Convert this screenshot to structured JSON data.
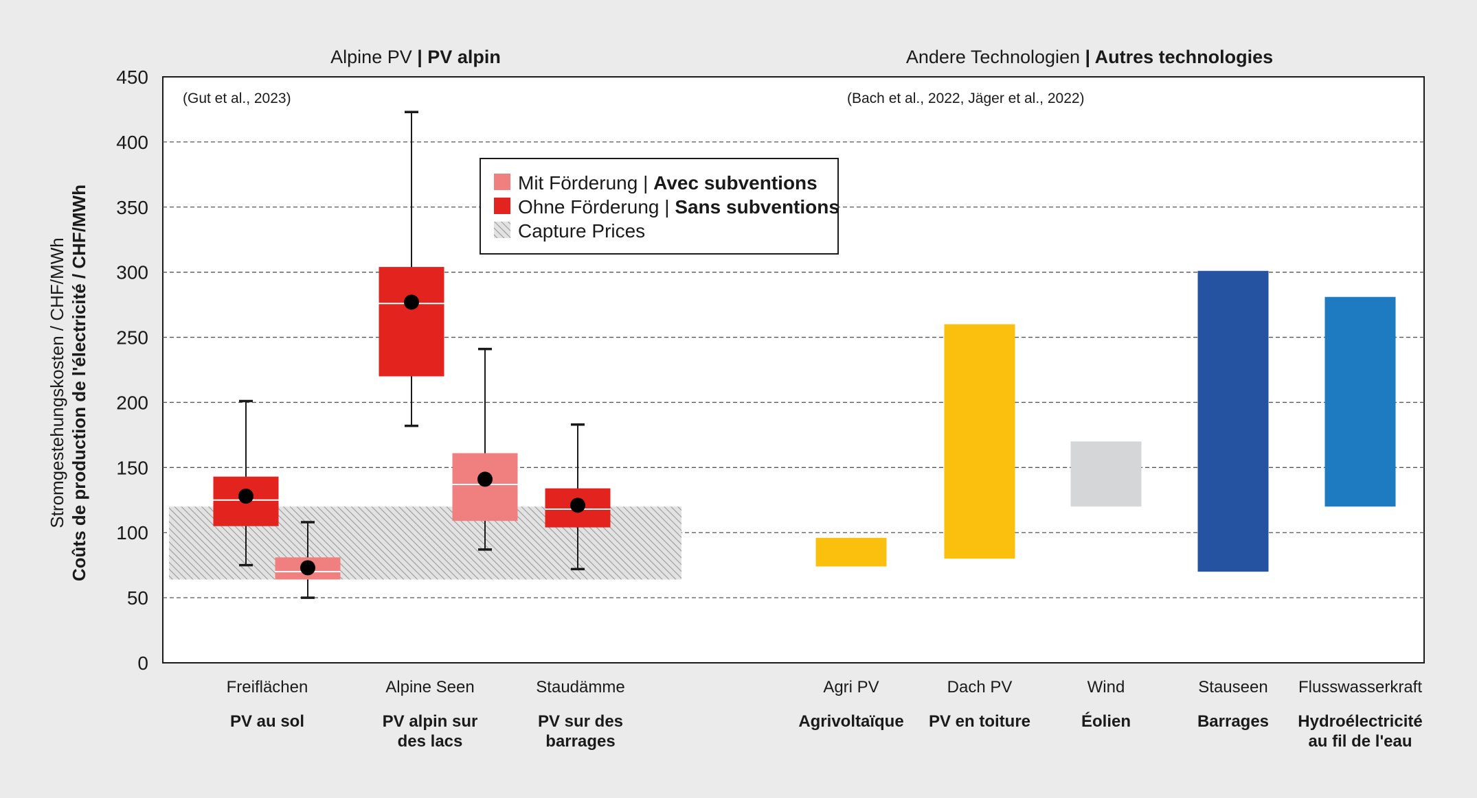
{
  "chart_data": {
    "type": "boxplot+range-bar",
    "ylim": [
      0,
      450
    ],
    "yticks": [
      "0",
      "50",
      "100",
      "150",
      "200",
      "250",
      "300",
      "350",
      "400",
      "450"
    ],
    "ylabel_line1": "Stromgestehungskosten / CHF/MWh",
    "ylabel_line2": "Coûts de production de l'électricité / CHF/MWh",
    "groups": [
      {
        "title_de": "Alpine PV",
        "sep": " | ",
        "title_fr": "PV alpin",
        "source": "(Gut et al., 2023)"
      },
      {
        "title_de": "Andere Technologien",
        "sep": " | ",
        "title_fr": "Autres technologies",
        "source": "(Bach et al., 2022, Jäger et al., 2022)"
      }
    ],
    "legend": {
      "items": [
        {
          "de": "Mit Förderung",
          "sep": " | ",
          "fr": "Avec subventions",
          "color": "#f08080"
        },
        {
          "de": "Ohne Förderung",
          "sep": " | ",
          "fr": "Sans subventions",
          "color": "#e3241e"
        },
        {
          "de": "Capture Prices",
          "sep": "",
          "fr": "",
          "color": "#c8c8c8"
        }
      ]
    },
    "capture_prices": {
      "low": 64,
      "high": 120,
      "color": "#c8c8c8"
    },
    "pv_categories": [
      {
        "label_de": "Freiflächen",
        "label_fr": [
          "PV au sol"
        ]
      },
      {
        "label_de": "Alpine Seen",
        "label_fr": [
          "PV alpin sur",
          "des lacs"
        ]
      },
      {
        "label_de": "Staudämme",
        "label_fr": [
          "PV sur des",
          "barrages"
        ]
      }
    ],
    "boxes": [
      {
        "category": "Freiflächen",
        "series": "Ohne Förderung",
        "whisker_low": 75,
        "q1": 105,
        "median": 125,
        "q3": 143,
        "whisker_high": 201,
        "mean": 128,
        "color": "#e3241e"
      },
      {
        "category": "Freiflächen",
        "series": "Mit Förderung",
        "whisker_low": 50,
        "q1": 64,
        "median": 70,
        "q3": 81,
        "whisker_high": 108,
        "mean": 73,
        "color": "#f08080"
      },
      {
        "category": "Alpine Seen",
        "series": "Ohne Förderung",
        "whisker_low": 182,
        "q1": 220,
        "median": 276,
        "q3": 304,
        "whisker_high": 423,
        "mean": 277,
        "color": "#e3241e"
      },
      {
        "category": "Alpine Seen",
        "series": "Mit Förderung",
        "whisker_low": 87,
        "q1": 109,
        "median": 137,
        "q3": 161,
        "whisker_high": 241,
        "mean": 141,
        "color": "#f08080"
      },
      {
        "category": "Staudämme",
        "series": "Ohne Förderung",
        "whisker_low": 72,
        "q1": 104,
        "median": 118,
        "q3": 134,
        "whisker_high": 183,
        "mean": 121,
        "color": "#e3241e"
      }
    ],
    "technologies": [
      {
        "label_de": "Agri PV",
        "label_fr": [
          "Agrivoltaïque"
        ],
        "low": 74,
        "high": 96,
        "color": "#fbbf0e"
      },
      {
        "label_de": "Dach PV",
        "label_fr": [
          "PV en toiture"
        ],
        "low": 80,
        "high": 260,
        "color": "#fbbf0e"
      },
      {
        "label_de": "Wind",
        "label_fr": [
          "Éolien"
        ],
        "low": 120,
        "high": 170,
        "color": "#d5d6d8"
      },
      {
        "label_de": "Stauseen",
        "label_fr": [
          "Barrages"
        ],
        "low": 70,
        "high": 301,
        "color": "#2553a2"
      },
      {
        "label_de": "Flusswasserkraft",
        "label_fr": [
          "Hydroélectricité",
          "au fil de l'eau"
        ],
        "low": 120,
        "high": 281,
        "color": "#1e7bc2"
      }
    ]
  }
}
